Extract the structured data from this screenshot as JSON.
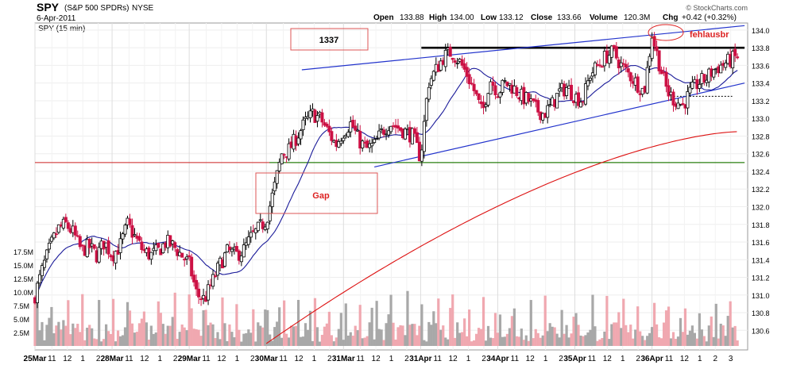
{
  "header": {
    "symbol": "SPY",
    "name": "(S&P 500 SPDRs)",
    "exchange": "NYSE",
    "date": "6-Apr-2011",
    "interval_label": "SPY (15 min)",
    "copyright": "© StockCharts.com",
    "quote": {
      "open_label": "Open",
      "open": "133.88",
      "high_label": "High",
      "high": "134.00",
      "low_label": "Low",
      "low": "133.12",
      "close_label": "Close",
      "close": "133.66",
      "volume_label": "Volume",
      "volume": "120.3M",
      "chg_label": "Chg",
      "chg": "+0.42 (+0.32%)"
    }
  },
  "annotations": {
    "box_1337": "1337",
    "box_gap": "Gap",
    "fehlausbr": "fehlausbr"
  },
  "colors": {
    "up_candle": "#000000",
    "down_candle": "#cc1144",
    "ma_short": "#1a1a99",
    "ma_long": "#dd1111",
    "trendline": "#2233cc",
    "resistance": "#000000",
    "support_green": "#008800",
    "support_red": "#cc2222",
    "annotation_red": "#dd2222",
    "volume_up": "#a8a8a8",
    "volume_down": "#f0a8b0"
  },
  "chart_data": {
    "type": "candlestick",
    "interval": "15 min",
    "price_axis": {
      "ylim": [
        130.4,
        134.0
      ],
      "ticks": [
        130.6,
        130.8,
        131.0,
        131.2,
        131.4,
        131.6,
        131.8,
        132.0,
        132.2,
        132.4,
        132.6,
        132.8,
        133.0,
        133.2,
        133.4,
        133.6,
        133.8,
        134.0
      ],
      "tick_labels": [
        "130.6",
        "130.8",
        "131.0",
        "131.2",
        "131.4",
        "131.6",
        "131.8",
        "132.0",
        "132.2",
        "132.4",
        "132.6",
        "132.8",
        "133.0",
        "133.2",
        "133.4",
        "133.6",
        "133.8",
        "134.0"
      ]
    },
    "volume_axis": {
      "ylim": [
        0,
        20000000
      ],
      "ticks": [
        2500000,
        5000000,
        7500000,
        10000000,
        12500000,
        15000000,
        17500000
      ],
      "tick_labels": [
        "2.5M",
        "5.0M",
        "7.5M",
        "10.0M",
        "12.5M",
        "15.0M",
        "17.5M"
      ]
    },
    "x_axis": {
      "labels": [
        "25Mar",
        "11",
        "12",
        "1",
        "2",
        "28Mar",
        "11",
        "12",
        "1",
        "2",
        "29Mar",
        "11",
        "12",
        "1",
        "2",
        "30Mar",
        "11",
        "12",
        "1",
        "2",
        "31Mar",
        "11",
        "12",
        "1",
        "2",
        "31Apr",
        "11",
        "12",
        "1",
        "2",
        "34Apr",
        "11",
        "12",
        "1",
        "2",
        "35Apr",
        "11",
        "12",
        "1",
        "2",
        "36Apr",
        "11",
        "12",
        "1",
        "2",
        "3"
      ],
      "bold": [
        true,
        false,
        false,
        false,
        false,
        true,
        false,
        false,
        false,
        false,
        true,
        false,
        false,
        false,
        false,
        true,
        false,
        false,
        false,
        false,
        true,
        false,
        false,
        false,
        false,
        true,
        false,
        false,
        false,
        false,
        true,
        false,
        false,
        false,
        false,
        true,
        false,
        false,
        false,
        false,
        true,
        false,
        false,
        false,
        false,
        false
      ],
      "x_pos": [
        0,
        1.1,
        2.1,
        3.1,
        4.1,
        5,
        6.1,
        7.1,
        8.1,
        9.1,
        10,
        11.1,
        12.1,
        13.1,
        14.1,
        15,
        16.1,
        17.1,
        18.1,
        19.1,
        20,
        21.1,
        22.1,
        23.1,
        24.1,
        25,
        26.1,
        27.1,
        28.1,
        29.1,
        30,
        31.1,
        32.1,
        33.1,
        34.1,
        35,
        36.1,
        37.1,
        38.1,
        39.1,
        40,
        41.1,
        42.1,
        43.1,
        44.1,
        45.1
      ]
    },
    "close_anchors": {
      "description": "approximate closing prices read off the chart, indexed by hour-slot",
      "x": [
        0,
        0.5,
        1,
        1.5,
        2,
        2.5,
        3,
        3.5,
        4,
        4.5,
        5,
        5.5,
        6,
        6.5,
        7,
        7.5,
        8,
        8.5,
        9,
        9.5,
        10,
        10.5,
        11,
        11.5,
        12,
        12.5,
        13,
        13.5,
        14,
        14.5,
        15,
        15.5,
        16,
        16.5,
        17,
        17.5,
        18,
        18.5,
        19,
        19.5,
        20,
        20.5,
        21,
        21.5,
        22,
        22.5,
        23,
        23.5,
        24,
        24.5,
        25,
        25.5,
        26,
        26.5,
        27,
        27.5,
        28,
        28.5,
        29,
        29.5,
        30,
        30.5,
        31,
        31.5,
        32,
        32.5,
        33,
        33.5,
        34,
        34.5,
        35,
        35.5,
        36,
        36.5,
        37,
        37.5,
        38,
        38.5,
        39,
        39.5,
        40,
        40.5,
        41,
        41.5,
        42,
        42.5,
        43,
        43.5,
        44,
        44.5,
        45,
        45.5
      ],
      "y": [
        131.0,
        131.3,
        131.55,
        131.75,
        131.8,
        131.7,
        131.5,
        131.55,
        131.45,
        131.6,
        131.45,
        131.55,
        131.8,
        131.65,
        131.5,
        131.45,
        131.5,
        131.6,
        131.55,
        131.45,
        131.35,
        131.0,
        130.95,
        131.15,
        131.35,
        131.5,
        131.45,
        131.5,
        131.65,
        131.75,
        131.85,
        132.2,
        132.6,
        132.65,
        132.8,
        132.95,
        133.05,
        133.0,
        132.85,
        132.7,
        132.85,
        132.95,
        132.75,
        132.65,
        132.7,
        132.85,
        132.95,
        132.9,
        132.85,
        132.8,
        132.55,
        133.4,
        133.55,
        133.7,
        133.75,
        133.65,
        133.5,
        133.3,
        133.05,
        133.45,
        133.3,
        133.4,
        133.35,
        133.25,
        133.2,
        133.1,
        133.05,
        133.15,
        133.3,
        133.35,
        133.25,
        133.2,
        133.5,
        133.6,
        133.7,
        133.75,
        133.6,
        133.5,
        133.4,
        133.3,
        133.95,
        133.6,
        133.3,
        133.2,
        133.15,
        133.3,
        133.4,
        133.45,
        133.55,
        133.6,
        133.65,
        133.7
      ]
    },
    "volume_profile": {
      "description": "volume bars, mostly 1-4M with spikes at session opens (~9-10M) and closes",
      "session_open_spike": 9500000,
      "typical_range": [
        800000,
        4500000
      ]
    },
    "overlays": [
      {
        "kind": "horizontal",
        "name": "resistance",
        "price": 133.8,
        "x_from": 25.05,
        "x_to": 46.0
      },
      {
        "kind": "horizontal",
        "name": "support-red",
        "price": 132.5,
        "x_from": 0,
        "x_to": 46.0
      },
      {
        "kind": "horizontal",
        "name": "support-green",
        "price": 132.5,
        "x_from": 15.2,
        "x_to": 46.0
      },
      {
        "kind": "dashed",
        "name": "last-low",
        "price": 133.25,
        "x_from": 41.4,
        "x_to": 45.2
      },
      {
        "kind": "trendline",
        "name": "upper-channel",
        "from": [
          17.3,
          133.55
        ],
        "to": [
          46.0,
          134.05
        ]
      },
      {
        "kind": "trendline",
        "name": "lower-channel",
        "from": [
          22.0,
          132.45
        ],
        "to": [
          46.0,
          133.4
        ]
      }
    ],
    "moving_averages": [
      {
        "name": "short",
        "period_desc": "short-term",
        "color": "#1a1a99"
      },
      {
        "name": "long",
        "period_desc": "long-term",
        "color": "#dd1111"
      }
    ]
  }
}
